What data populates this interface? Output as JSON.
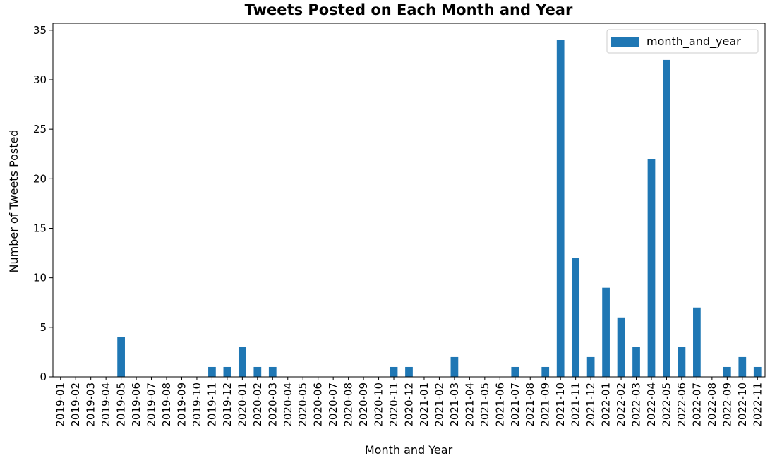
{
  "chart_data": {
    "type": "bar",
    "title": "Tweets Posted on Each Month and Year",
    "xlabel": "Month and Year",
    "ylabel": "Number of Tweets Posted",
    "ylim": [
      0,
      35.7
    ],
    "yticks": [
      0,
      5,
      10,
      15,
      20,
      25,
      30,
      35
    ],
    "grid": false,
    "legend_position": "top-right",
    "bar_color": "#1f77b4",
    "categories": [
      "2019-01",
      "2019-02",
      "2019-03",
      "2019-04",
      "2019-05",
      "2019-06",
      "2019-07",
      "2019-08",
      "2019-09",
      "2019-10",
      "2019-11",
      "2019-12",
      "2020-01",
      "2020-02",
      "2020-03",
      "2020-04",
      "2020-05",
      "2020-06",
      "2020-07",
      "2020-08",
      "2020-09",
      "2020-10",
      "2020-11",
      "2020-12",
      "2021-01",
      "2021-02",
      "2021-03",
      "2021-04",
      "2021-05",
      "2021-06",
      "2021-07",
      "2021-08",
      "2021-09",
      "2021-10",
      "2021-11",
      "2021-12",
      "2022-01",
      "2022-02",
      "2022-03",
      "2022-04",
      "2022-05",
      "2022-06",
      "2022-07",
      "2022-08",
      "2022-09",
      "2022-10",
      "2022-11"
    ],
    "series": [
      {
        "name": "month_and_year",
        "values": [
          0,
          0,
          0,
          0,
          4,
          0,
          0,
          0,
          0,
          0,
          1,
          1,
          3,
          1,
          1,
          0,
          0,
          0,
          0,
          0,
          0,
          0,
          1,
          1,
          0,
          0,
          2,
          0,
          0,
          0,
          1,
          0,
          1,
          34,
          12,
          2,
          9,
          6,
          3,
          22,
          32,
          3,
          7,
          0,
          1,
          2,
          1
        ]
      }
    ]
  }
}
